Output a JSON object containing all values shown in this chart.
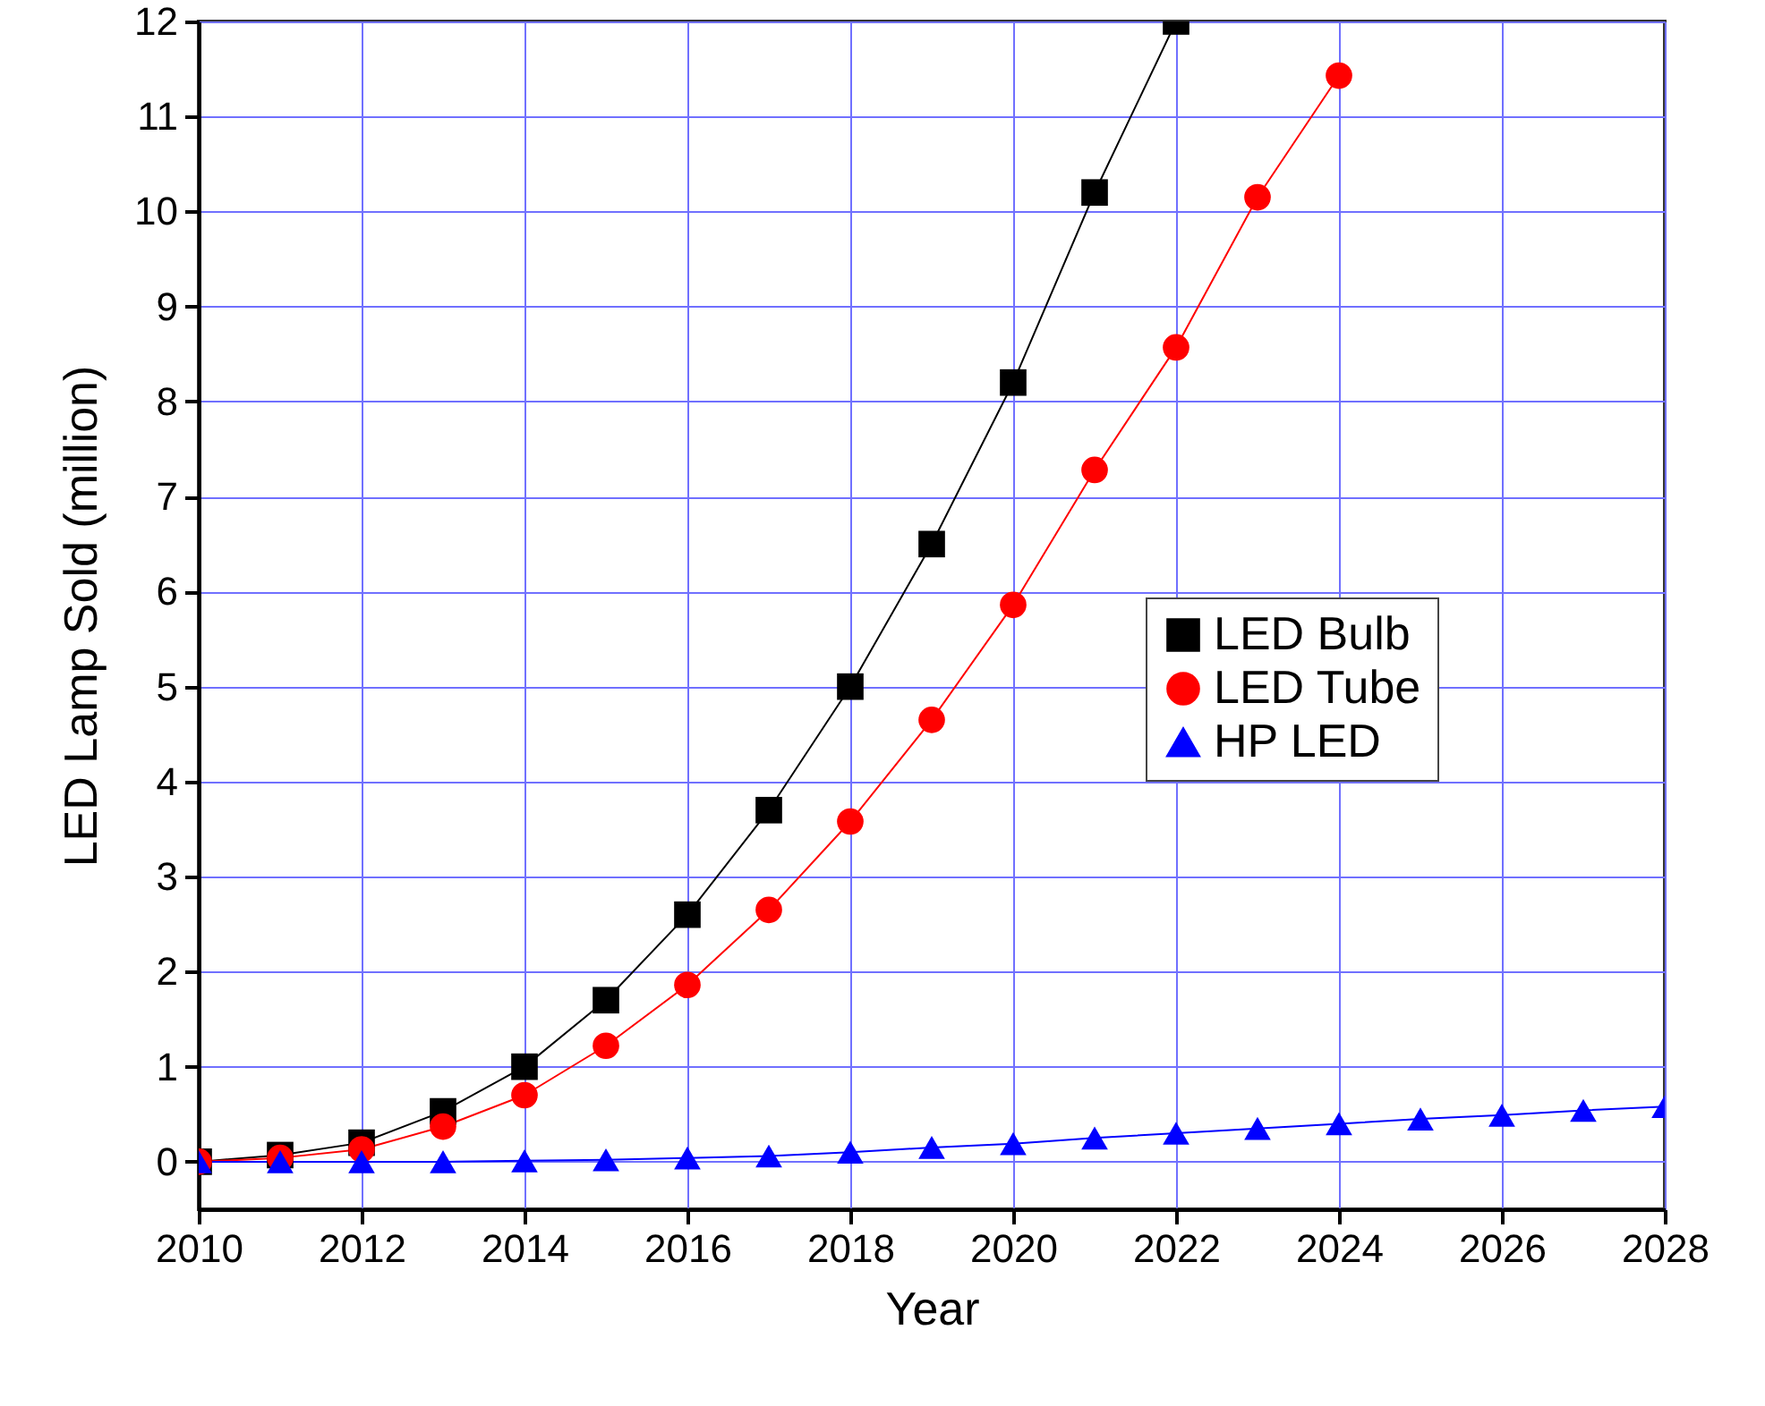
{
  "chart_data": {
    "type": "line",
    "xlabel": "Year",
    "ylabel": "LED Lamp Sold (million)",
    "x": [
      2010,
      2011,
      2012,
      2013,
      2014,
      2015,
      2016,
      2017,
      2018,
      2019,
      2020,
      2021,
      2022,
      2023,
      2024,
      2025,
      2026,
      2027,
      2028
    ],
    "series": [
      {
        "name": "LED Bulb",
        "color": "#000000",
        "marker": "square",
        "values": [
          0,
          0.07,
          0.2,
          0.53,
          1.0,
          1.7,
          2.6,
          3.7,
          5.0,
          6.5,
          8.2,
          10.2,
          12.0,
          null,
          null,
          null,
          null,
          null,
          null
        ]
      },
      {
        "name": "LED Tube",
        "color": "#ff0000",
        "marker": "circle",
        "values": [
          0,
          0.04,
          0.13,
          0.37,
          0.7,
          1.22,
          1.86,
          2.65,
          3.58,
          4.65,
          5.86,
          7.28,
          8.57,
          10.15,
          11.43,
          null,
          null,
          null,
          null
        ]
      },
      {
        "name": "HP LED",
        "color": "#0000ff",
        "marker": "triangle",
        "values": [
          0,
          0,
          0,
          0,
          0.01,
          0.02,
          0.04,
          0.06,
          0.1,
          0.15,
          0.19,
          0.25,
          0.3,
          0.35,
          0.4,
          0.45,
          0.49,
          0.54,
          0.58
        ]
      }
    ],
    "xlim": [
      2010,
      2028
    ],
    "xticks": [
      2010,
      2012,
      2014,
      2016,
      2018,
      2020,
      2022,
      2024,
      2026,
      2028
    ],
    "ylim": [
      -0.5,
      12
    ],
    "yticks": [
      0,
      1,
      2,
      3,
      4,
      5,
      6,
      7,
      8,
      9,
      10,
      11,
      12
    ],
    "grid": true,
    "legend": "right"
  }
}
